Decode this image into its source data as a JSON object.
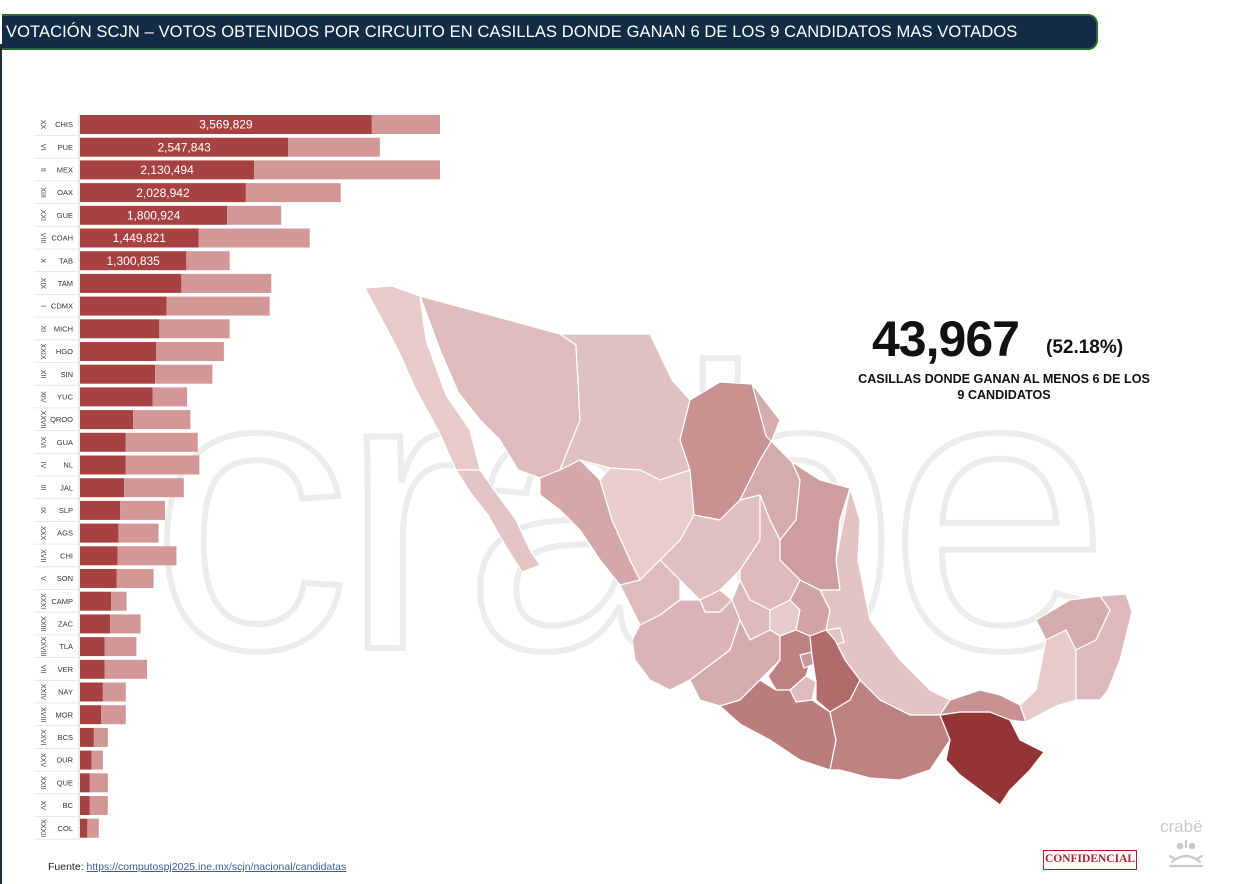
{
  "title": "VOTACIÓN SCJN – VOTOS OBTENIDOS POR CIRCUITO EN CASILLAS DONDE GANAN 6 DE LOS 9 CANDIDATOS MAS VOTADOS",
  "kpi": {
    "value": "43,967",
    "pct": "(52.18%)",
    "caption": "CASILLAS DONDE GANAN AL MENOS 6 DE LOS 9 CANDIDATOS"
  },
  "source": {
    "label": "Fuente: ",
    "link": "https://computospj2025.ine.mx/scjn/nacional/candidatas"
  },
  "badge": "CONFIDENCIAL",
  "brand": "crabë",
  "watermark": "crabe",
  "colors": {
    "dark_bar": "#a84141",
    "light_bar": "#d39797",
    "title_bg": "#122c46",
    "map_max": "#943535",
    "map_min": "#f2dede"
  },
  "chart_data": {
    "type": "bar",
    "orientation": "horizontal",
    "stacked": true,
    "categories": [
      "CHIS",
      "PUE",
      "MEX",
      "OAX",
      "GUE",
      "COAH",
      "TAB",
      "TAM",
      "CDMX",
      "MICH",
      "HGO",
      "SIN",
      "YUC",
      "QROO",
      "GUA",
      "NL",
      "JAL",
      "SLP",
      "AGS",
      "CHI",
      "SON",
      "CAMP",
      "ZAC",
      "TLA",
      "VER",
      "NAY",
      "MOR",
      "BCS",
      "DUR",
      "QUE",
      "BC",
      "COL"
    ],
    "circuits": [
      "XX",
      "VI",
      "II",
      "XIII",
      "XXI",
      "VIII",
      "X",
      "XIX",
      "I",
      "XI",
      "XXIX",
      "XII",
      "XIV",
      "XXVII",
      "XVI",
      "IV",
      "III",
      "IX",
      "XXX",
      "XVII",
      "V",
      "XXXI",
      "XXIII",
      "XXVIII",
      "VII",
      "XXIV",
      "XVIII",
      "XXVI",
      "XXV",
      "XXII",
      "XV",
      "XXXII"
    ],
    "series": [
      {
        "values": [
          3569829,
          2547843,
          2130494,
          2028942,
          1800924,
          1449821,
          1300835,
          1240000,
          1060000,
          970000,
          930000,
          920000,
          890000,
          650000,
          560000,
          560000,
          540000,
          490000,
          470000,
          460000,
          450000,
          380000,
          370000,
          300000,
          300000,
          280000,
          260000,
          170000,
          140000,
          120000,
          120000,
          90000
        ]
      },
      {
        "values": [
          1180000,
          1120000,
          2640000,
          1160000,
          660000,
          1360000,
          530000,
          1100000,
          1260000,
          860000,
          830000,
          700000,
          420000,
          700000,
          880000,
          900000,
          730000,
          550000,
          490000,
          720000,
          450000,
          190000,
          370000,
          390000,
          520000,
          280000,
          300000,
          170000,
          140000,
          220000,
          220000,
          140000
        ]
      }
    ],
    "data_labels": [
      "3,569,829",
      "2,547,843",
      "2,130,494",
      "2,028,942",
      "1,800,924",
      "1,449,821",
      "1,300,835"
    ],
    "xlim": [
      0,
      4800000
    ],
    "grid": false,
    "legend": "none"
  },
  "map": {
    "type": "choropleth",
    "states": [
      {
        "code": "BC",
        "level": 0.12
      },
      {
        "code": "BCS",
        "level": 0.15
      },
      {
        "code": "SON",
        "level": 0.2
      },
      {
        "code": "CHI",
        "level": 0.18
      },
      {
        "code": "COAH",
        "level": 0.45
      },
      {
        "code": "NL",
        "level": 0.3
      },
      {
        "code": "TAM",
        "level": 0.38
      },
      {
        "code": "SIN",
        "level": 0.32
      },
      {
        "code": "DUR",
        "level": 0.1
      },
      {
        "code": "ZAC",
        "level": 0.18
      },
      {
        "code": "SLP",
        "level": 0.22
      },
      {
        "code": "NAY",
        "level": 0.2
      },
      {
        "code": "AGS",
        "level": 0.22
      },
      {
        "code": "JAL",
        "level": 0.24
      },
      {
        "code": "GUA",
        "level": 0.22
      },
      {
        "code": "QUE",
        "level": 0.12
      },
      {
        "code": "HGO",
        "level": 0.34
      },
      {
        "code": "VER",
        "level": 0.16
      },
      {
        "code": "MICH",
        "level": 0.3
      },
      {
        "code": "MEX",
        "level": 0.55
      },
      {
        "code": "CDMX",
        "level": 0.42
      },
      {
        "code": "MOR",
        "level": 0.2
      },
      {
        "code": "TLA",
        "level": 0.16
      },
      {
        "code": "PUE",
        "level": 0.68
      },
      {
        "code": "GUE",
        "level": 0.58
      },
      {
        "code": "OAX",
        "level": 0.55
      },
      {
        "code": "CHIS",
        "level": 1.0
      },
      {
        "code": "TAB",
        "level": 0.45
      },
      {
        "code": "CAMP",
        "level": 0.12
      },
      {
        "code": "YUC",
        "level": 0.3
      },
      {
        "code": "QROO",
        "level": 0.22
      }
    ]
  }
}
